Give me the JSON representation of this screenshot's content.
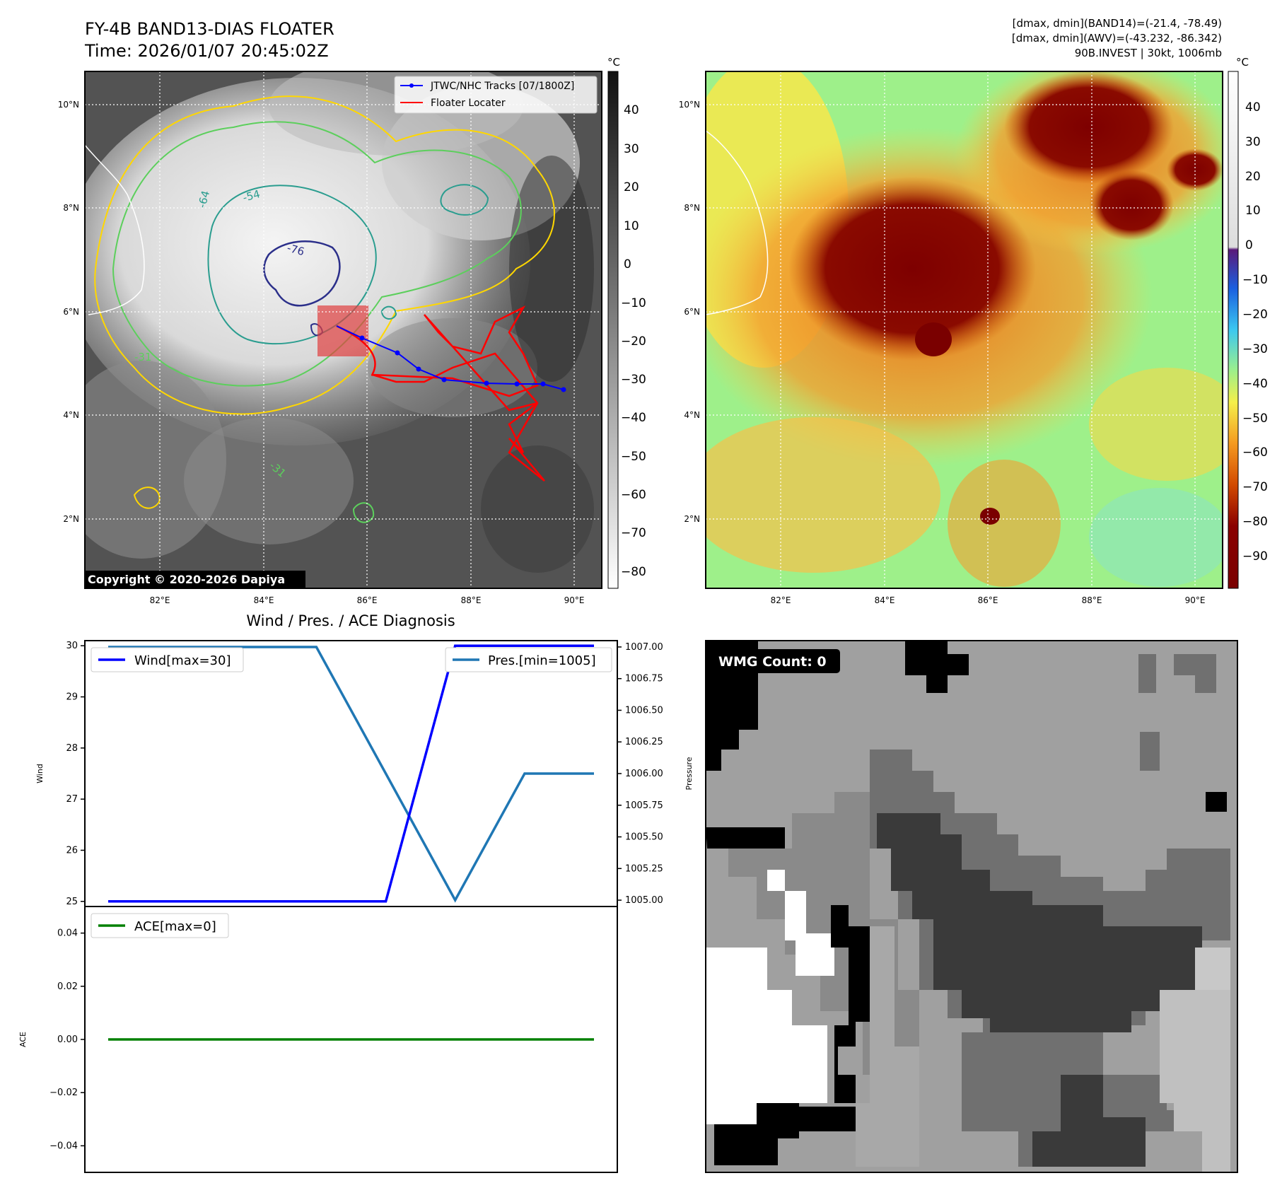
{
  "header": {
    "title_line1": "FY-4B BAND13-DIAS FLOATER",
    "title_line2": "Time: 2026/01/07 20:45:02Z",
    "right_line1": "[dmax, dmin](BAND14)=(-21.4, -78.49)",
    "right_line2": "[dmax, dmin](AWV)=(-43.232, -86.342)",
    "right_line3": "90B.INVEST | 30kt, 1006mb"
  },
  "map_axes": {
    "lon_ticks": [
      "82°E",
      "84°E",
      "86°E",
      "88°E",
      "90°E"
    ],
    "lat_ticks": [
      "10°N",
      "8°N",
      "6°N",
      "4°N",
      "2°N"
    ]
  },
  "sat_panel": {
    "copyright": "Copyright © 2020-2026 Dapiya",
    "legend": [
      "JTWC/NHC Tracks [07/1800Z]",
      "Floater Locater"
    ],
    "contour_labels": [
      "-31",
      "-54",
      "-64",
      "-76"
    ],
    "colorbar_unit": "°C",
    "colorbar_ticks": [
      "40",
      "30",
      "20",
      "10",
      "0",
      "−10",
      "−20",
      "−30",
      "−40",
      "−50",
      "−60",
      "−70",
      "−80"
    ]
  },
  "awv_panel": {
    "colorbar_unit": "°C",
    "colorbar_ticks": [
      "40",
      "30",
      "20",
      "10",
      "0",
      "−10",
      "−20",
      "−30",
      "−40",
      "−50",
      "−60",
      "−70",
      "−80",
      "−90"
    ]
  },
  "diag_panel": {
    "title": "Wind / Pres. / ACE Diagnosis",
    "wind_ylabel": "Wind",
    "pres_ylabel": "Pressure",
    "ace_ylabel": "ACE",
    "wind_legend": "Wind[max=30]",
    "pres_legend": "Pres.[min=1005]",
    "ace_legend": "ACE[max=0]",
    "wind_ticks": [
      "30",
      "29",
      "28",
      "27",
      "26",
      "25"
    ],
    "pres_ticks": [
      "1007.00",
      "1006.75",
      "1006.50",
      "1006.25",
      "1006.00",
      "1005.75",
      "1005.50",
      "1005.25",
      "1005.00"
    ],
    "ace_ticks": [
      "0.04",
      "0.02",
      "0.00",
      "−0.02",
      "−0.04"
    ]
  },
  "wmg_panel": {
    "count_label": "WMG Count: 0"
  },
  "chart_data": [
    {
      "type": "line",
      "title": "Wind / Pres. / ACE Diagnosis",
      "series": [
        {
          "name": "Wind[max=30]",
          "color": "#0000ff",
          "x": [
            0,
            1,
            2,
            3,
            4,
            5,
            6,
            7
          ],
          "values": [
            25,
            25,
            25,
            25,
            25,
            30,
            30,
            30
          ]
        },
        {
          "name": "Pres.[min=1005]",
          "color": "#1f77b4",
          "x": [
            0,
            1,
            2,
            3,
            4,
            5,
            6,
            7
          ],
          "values": [
            1007,
            1007,
            1007,
            1007,
            1006,
            1005,
            1006,
            1006
          ]
        }
      ],
      "ylim_wind": [
        24.9,
        30.1
      ],
      "ylim_pres": [
        1004.95,
        1007.05
      ]
    },
    {
      "type": "line",
      "series": [
        {
          "name": "ACE[max=0]",
          "color": "#008000",
          "x": [
            0,
            7
          ],
          "values": [
            0,
            0
          ]
        }
      ],
      "ylim": [
        -0.05,
        0.05
      ]
    }
  ],
  "colors": {
    "track_blue": "#0000ff",
    "floater_red": "#ff0000",
    "contour_yellow": "#ffd700",
    "contour_green": "#5ccf5c",
    "contour_teal": "#2a9d8f",
    "contour_navy": "#2b2f8a",
    "pres_line": "#1f77b4",
    "ace_line": "#008000"
  }
}
